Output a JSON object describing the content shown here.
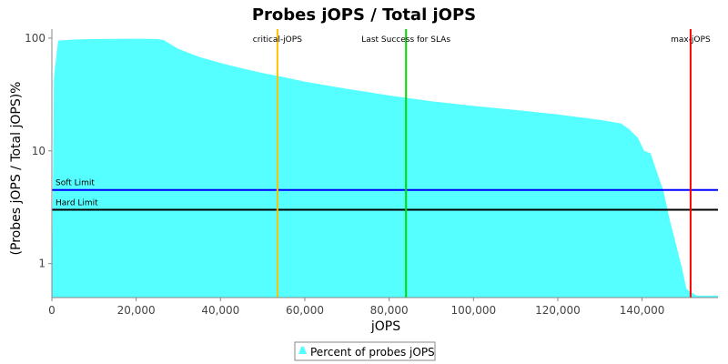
{
  "chart_data": {
    "type": "area",
    "title": "Probes jOPS / Total jOPS",
    "xlabel": "jOPS",
    "ylabel": "(Probes jOPS / Total jOPS)%",
    "x_scale": "linear",
    "y_scale": "log",
    "xlim": [
      0,
      158000
    ],
    "ylim": [
      0.5,
      120
    ],
    "x_ticks": [
      0,
      20000,
      40000,
      60000,
      80000,
      100000,
      120000,
      140000
    ],
    "x_tick_labels": [
      "0",
      "20,000",
      "40,000",
      "60,000",
      "80,000",
      "100,000",
      "120,000",
      "140,000"
    ],
    "y_ticks": [
      1,
      10,
      100
    ],
    "y_tick_labels": [
      "1",
      "10",
      "100"
    ],
    "grid": false,
    "series": [
      {
        "name": "Percent of probes jOPS",
        "color": "#55FFFF",
        "x": [
          0,
          500,
          1500,
          5000,
          10000,
          20000,
          25000,
          26500,
          30000,
          35000,
          40000,
          45000,
          50000,
          55000,
          60000,
          70000,
          80000,
          90000,
          100000,
          110000,
          120000,
          130000,
          135000,
          137000,
          139000,
          140500,
          142000,
          143500,
          145000,
          146500,
          148000,
          149500,
          150500,
          151500,
          153000,
          158000
        ],
        "y": [
          0.5,
          45,
          95,
          97,
          98,
          98.5,
          98,
          96,
          80,
          68,
          60,
          54,
          49,
          45,
          41,
          35.5,
          31,
          27.5,
          25,
          23,
          21,
          18.8,
          17.5,
          15.5,
          13,
          10,
          9.5,
          6.5,
          4.5,
          2.5,
          1.5,
          0.9,
          0.6,
          0.56,
          0.52,
          0.52
        ]
      }
    ],
    "vertical_markers": [
      {
        "label": "critical-jOPS",
        "x": 53500,
        "color": "#FFC000"
      },
      {
        "label": "Last Success for SLAs",
        "x": 84000,
        "color": "#00DD00"
      },
      {
        "label": "max-jOPS",
        "x": 151500,
        "color": "#FF0000"
      }
    ],
    "horizontal_markers": [
      {
        "label": "Soft Limit",
        "y": 4.5,
        "color": "#0000FF"
      },
      {
        "label": "Hard Limit",
        "y": 3.0,
        "color": "#000000"
      }
    ],
    "legend": {
      "position": "bottom-center",
      "entries": [
        "Percent of probes jOPS"
      ]
    }
  }
}
